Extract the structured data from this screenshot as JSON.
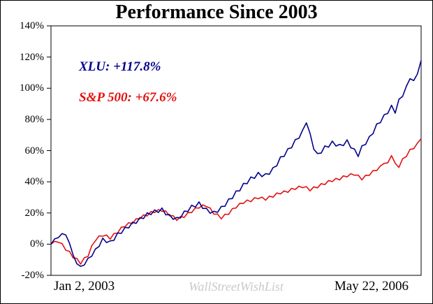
{
  "title": "Performance Since 2003",
  "legend": {
    "xlu_label": "XLU: +117.8%",
    "sp500_label": "S&P 500: +67.6%"
  },
  "x_axis": {
    "left_label": "Jan 2, 2003",
    "right_label": "May 22, 2006"
  },
  "watermark": "WallStreetWishList",
  "colors": {
    "xlu": "#00008b",
    "sp500": "#e31010",
    "watermark": "#c9c9c9",
    "axis": "#000000"
  },
  "chart_data": {
    "type": "line",
    "title": "Performance Since 2003",
    "xlabel": "",
    "ylabel": "",
    "ylim": [
      -20,
      140
    ],
    "y_ticks": [
      "140%",
      "120%",
      "100%",
      "80%",
      "60%",
      "40%",
      "20%",
      "0%",
      "-20%"
    ],
    "x_range": [
      "Jan 2, 2003",
      "May 22, 2006"
    ],
    "grid": false,
    "legend_position": "top-left-inside",
    "series": [
      {
        "name": "XLU",
        "final_label": "XLU: +117.8%",
        "final_value": 117.8,
        "color": "#00008b",
        "values": [
          0,
          3.4,
          4.2,
          6.8,
          5.9,
          0.6,
          -7.1,
          -12.6,
          -14.2,
          -13.4,
          -9,
          -7.8,
          -3.1,
          -1.5,
          3.9,
          1,
          2.1,
          2.4,
          7.2,
          6.9,
          10.8,
          10.4,
          14.1,
          13.3,
          17,
          16.4,
          20.1,
          18.9,
          22,
          20.3,
          23.2,
          18.8,
          19,
          15.9,
          17.1,
          16.8,
          21.2,
          20.9,
          25,
          23.8,
          27.1,
          22.9,
          23,
          19.8,
          21.1,
          20.4,
          24.2,
          24.3,
          29,
          29.2,
          34.1,
          34.2,
          39,
          38.8,
          43.1,
          42.2,
          46,
          43.3,
          45.2,
          44.8,
          49.1,
          50.2,
          56,
          56.3,
          61.2,
          61.8,
          67.1,
          67.9,
          73.2,
          77.8,
          71,
          60.9,
          58.1,
          58.4,
          63,
          62.2,
          66.1,
          62.9,
          64,
          63.2,
          66.9,
          61.8,
          61,
          56.2,
          63.1,
          63.9,
          69,
          70.8,
          77.1,
          77.9,
          83,
          83.9,
          89.1,
          84,
          92.9,
          94.8,
          101.2,
          106.1,
          104.9,
          109.2,
          117.8
        ]
      },
      {
        "name": "S&P 500",
        "final_label": "S&P 500: +67.6%",
        "final_value": 67.6,
        "color": "#e31010",
        "values": [
          0,
          1.8,
          1.2,
          0.4,
          -3.9,
          -4.6,
          -8.9,
          -9.1,
          -12.8,
          -8.7,
          -7.9,
          -1.1,
          2.1,
          5.3,
          5.1,
          5.9,
          3.2,
          6.8,
          7.1,
          10.9,
          11.2,
          13.8,
          13.1,
          16.3,
          16.2,
          18.8,
          18.1,
          20.9,
          20.2,
          22.2,
          21.1,
          21.3,
          18.2,
          18.3,
          15.2,
          17.8,
          17.1,
          20.3,
          20.2,
          23.3,
          23.1,
          25.2,
          24.1,
          23.2,
          19.2,
          19.3,
          16.2,
          19.2,
          19.1,
          22.8,
          23.2,
          26.2,
          26.1,
          28.3,
          27.2,
          29.8,
          29.1,
          30.2,
          28.2,
          30.8,
          30.1,
          32.8,
          32.2,
          34.2,
          33.2,
          35.8,
          35.1,
          37.2,
          36.2,
          36.9,
          34.2,
          36.8,
          36.1,
          38.8,
          38.2,
          40.8,
          40.1,
          42.2,
          41.2,
          43.8,
          43.1,
          45.2,
          44.2,
          44.3,
          41.2,
          44.2,
          44.1,
          47.2,
          47.2,
          50.2,
          51.8,
          52.2,
          56.8,
          51.9,
          49.2,
          54.8,
          56.1,
          60.8,
          61.2,
          64.8,
          67.6
        ]
      }
    ]
  }
}
